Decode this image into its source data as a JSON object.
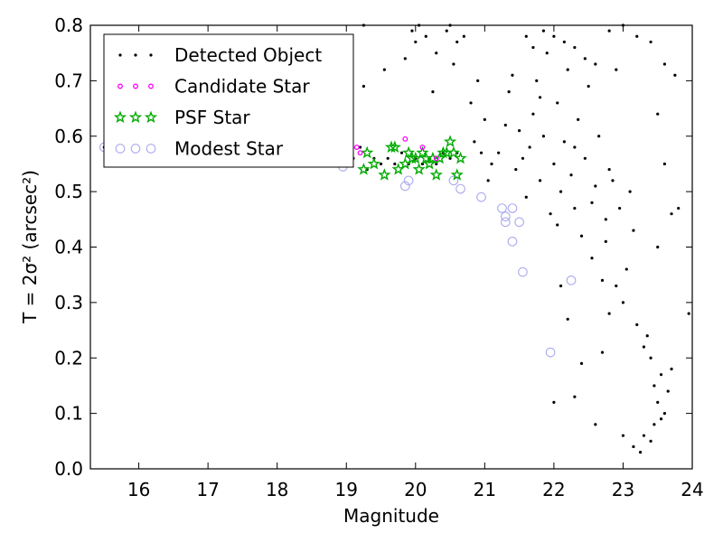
{
  "chart_data": {
    "type": "scatter",
    "xlabel": "Magnitude",
    "ylabel": "T = 2σ² (arcsec²)",
    "xlim": [
      15.3,
      24.0
    ],
    "ylim": [
      0.0,
      0.8
    ],
    "xticks": [
      "16",
      "17",
      "18",
      "19",
      "20",
      "21",
      "22",
      "23",
      "24"
    ],
    "yticks": [
      "0.0",
      "0.1",
      "0.2",
      "0.3",
      "0.4",
      "0.5",
      "0.6",
      "0.7",
      "0.8"
    ],
    "legend_position": "top-left",
    "grid": false,
    "series": [
      {
        "name": "Detected Object",
        "marker": "dot",
        "color": "#000000",
        "points": [
          [
            15.5,
            0.58
          ],
          [
            15.9,
            0.59
          ],
          [
            16.2,
            0.57
          ],
          [
            16.5,
            0.58
          ],
          [
            16.8,
            0.57
          ],
          [
            17.1,
            0.56
          ],
          [
            17.4,
            0.57
          ],
          [
            17.7,
            0.56
          ],
          [
            18.0,
            0.57
          ],
          [
            18.3,
            0.56
          ],
          [
            18.6,
            0.55
          ],
          [
            18.9,
            0.55
          ],
          [
            19.0,
            0.57
          ],
          [
            19.1,
            0.56
          ],
          [
            19.2,
            0.58
          ],
          [
            19.3,
            0.54
          ],
          [
            19.4,
            0.56
          ],
          [
            19.5,
            0.55
          ],
          [
            19.6,
            0.56
          ],
          [
            19.7,
            0.55
          ],
          [
            19.8,
            0.57
          ],
          [
            19.9,
            0.55
          ],
          [
            20.0,
            0.56
          ],
          [
            20.1,
            0.55
          ],
          [
            20.2,
            0.56
          ],
          [
            20.3,
            0.55
          ],
          [
            20.4,
            0.57
          ],
          [
            20.5,
            0.56
          ],
          [
            20.6,
            0.57
          ],
          [
            19.25,
            0.8
          ],
          [
            19.25,
            0.69
          ],
          [
            19.55,
            0.72
          ],
          [
            19.95,
            0.79
          ],
          [
            20.05,
            0.8
          ],
          [
            19.85,
            0.74
          ],
          [
            20.0,
            0.77
          ],
          [
            20.15,
            0.78
          ],
          [
            20.25,
            0.68
          ],
          [
            20.3,
            0.75
          ],
          [
            20.45,
            0.79
          ],
          [
            20.5,
            0.8
          ],
          [
            20.55,
            0.73
          ],
          [
            20.6,
            0.77
          ],
          [
            20.7,
            0.78
          ],
          [
            20.9,
            0.7
          ],
          [
            20.8,
            0.66
          ],
          [
            21.0,
            0.63
          ],
          [
            20.85,
            0.59
          ],
          [
            21.1,
            0.55
          ],
          [
            20.95,
            0.57
          ],
          [
            21.05,
            0.52
          ],
          [
            21.2,
            0.57
          ],
          [
            21.3,
            0.62
          ],
          [
            21.35,
            0.68
          ],
          [
            21.4,
            0.71
          ],
          [
            21.45,
            0.54
          ],
          [
            21.55,
            0.56
          ],
          [
            21.6,
            0.49
          ],
          [
            21.65,
            0.58
          ],
          [
            21.7,
            0.64
          ],
          [
            21.75,
            0.7
          ],
          [
            21.8,
            0.52
          ],
          [
            21.85,
            0.6
          ],
          [
            21.9,
            0.75
          ],
          [
            21.95,
            0.46
          ],
          [
            22.0,
            0.55
          ],
          [
            22.05,
            0.66
          ],
          [
            22.1,
            0.5
          ],
          [
            22.15,
            0.59
          ],
          [
            22.2,
            0.72
          ],
          [
            22.25,
            0.53
          ],
          [
            22.3,
            0.47
          ],
          [
            22.35,
            0.63
          ],
          [
            22.4,
            0.42
          ],
          [
            22.45,
            0.56
          ],
          [
            22.5,
            0.69
          ],
          [
            22.55,
            0.38
          ],
          [
            22.6,
            0.51
          ],
          [
            22.65,
            0.6
          ],
          [
            22.7,
            0.34
          ],
          [
            22.75,
            0.45
          ],
          [
            22.8,
            0.54
          ],
          [
            21.6,
            0.78
          ],
          [
            21.7,
            0.76
          ],
          [
            21.85,
            0.79
          ],
          [
            22.0,
            0.78
          ],
          [
            22.15,
            0.77
          ],
          [
            22.3,
            0.76
          ],
          [
            22.45,
            0.74
          ],
          [
            22.6,
            0.73
          ],
          [
            22.8,
            0.79
          ],
          [
            22.9,
            0.72
          ],
          [
            23.0,
            0.8
          ],
          [
            23.2,
            0.78
          ],
          [
            23.4,
            0.77
          ],
          [
            23.6,
            0.73
          ],
          [
            21.5,
            0.61
          ],
          [
            21.8,
            0.67
          ],
          [
            22.05,
            0.44
          ],
          [
            22.3,
            0.58
          ],
          [
            22.55,
            0.48
          ],
          [
            22.75,
            0.41
          ],
          [
            22.85,
            0.52
          ],
          [
            22.95,
            0.47
          ],
          [
            23.05,
            0.36
          ],
          [
            23.15,
            0.43
          ],
          [
            23.1,
            0.5
          ],
          [
            22.9,
            0.33
          ],
          [
            22.8,
            0.28
          ],
          [
            23.0,
            0.3
          ],
          [
            23.2,
            0.26
          ],
          [
            23.3,
            0.22
          ],
          [
            23.4,
            0.2
          ],
          [
            23.35,
            0.24
          ],
          [
            23.45,
            0.15
          ],
          [
            23.5,
            0.12
          ],
          [
            23.55,
            0.17
          ],
          [
            23.65,
            0.14
          ],
          [
            23.7,
            0.18
          ],
          [
            23.6,
            0.1
          ],
          [
            23.45,
            0.08
          ],
          [
            23.3,
            0.06
          ],
          [
            23.15,
            0.04
          ],
          [
            23.25,
            0.03
          ],
          [
            23.4,
            0.05
          ],
          [
            23.55,
            0.09
          ],
          [
            23.7,
            0.46
          ],
          [
            23.6,
            0.55
          ],
          [
            23.5,
            0.64
          ],
          [
            23.0,
            0.06
          ],
          [
            22.6,
            0.08
          ],
          [
            22.3,
            0.13
          ],
          [
            22.0,
            0.12
          ],
          [
            22.4,
            0.19
          ],
          [
            22.7,
            0.21
          ],
          [
            22.2,
            0.27
          ],
          [
            22.1,
            0.33
          ],
          [
            23.95,
            0.28
          ],
          [
            23.5,
            0.4
          ],
          [
            23.8,
            0.47
          ],
          [
            23.75,
            0.71
          ]
        ]
      },
      {
        "name": "Candidate Star",
        "marker": "small-circle",
        "color": "#ff00ff",
        "points": [
          [
            19.15,
            0.58
          ],
          [
            19.2,
            0.57
          ],
          [
            19.85,
            0.595
          ],
          [
            20.1,
            0.58
          ],
          [
            20.3,
            0.56
          ]
        ]
      },
      {
        "name": "PSF Star",
        "marker": "star",
        "color": "#00aa00",
        "points": [
          [
            19.25,
            0.54
          ],
          [
            19.3,
            0.57
          ],
          [
            19.4,
            0.55
          ],
          [
            19.55,
            0.53
          ],
          [
            19.65,
            0.58
          ],
          [
            19.7,
            0.58
          ],
          [
            19.75,
            0.54
          ],
          [
            19.85,
            0.55
          ],
          [
            19.9,
            0.57
          ],
          [
            19.95,
            0.56
          ],
          [
            20.0,
            0.56
          ],
          [
            20.05,
            0.54
          ],
          [
            20.1,
            0.57
          ],
          [
            20.15,
            0.56
          ],
          [
            20.2,
            0.55
          ],
          [
            20.25,
            0.56
          ],
          [
            20.3,
            0.53
          ],
          [
            20.35,
            0.56
          ],
          [
            20.4,
            0.57
          ],
          [
            20.45,
            0.57
          ],
          [
            20.5,
            0.59
          ],
          [
            20.55,
            0.57
          ],
          [
            20.6,
            0.53
          ],
          [
            20.65,
            0.56
          ]
        ]
      },
      {
        "name": "Modest Star",
        "marker": "circle",
        "color": "#aaaaee",
        "points": [
          [
            15.5,
            0.58
          ],
          [
            15.9,
            0.585
          ],
          [
            16.2,
            0.57
          ],
          [
            18.95,
            0.545
          ],
          [
            19.85,
            0.51
          ],
          [
            19.9,
            0.52
          ],
          [
            20.55,
            0.52
          ],
          [
            20.65,
            0.505
          ],
          [
            20.95,
            0.49
          ],
          [
            21.25,
            0.47
          ],
          [
            21.3,
            0.455
          ],
          [
            21.3,
            0.445
          ],
          [
            21.4,
            0.47
          ],
          [
            21.4,
            0.41
          ],
          [
            21.5,
            0.445
          ],
          [
            21.55,
            0.355
          ],
          [
            21.95,
            0.21
          ],
          [
            22.25,
            0.34
          ]
        ]
      }
    ]
  }
}
